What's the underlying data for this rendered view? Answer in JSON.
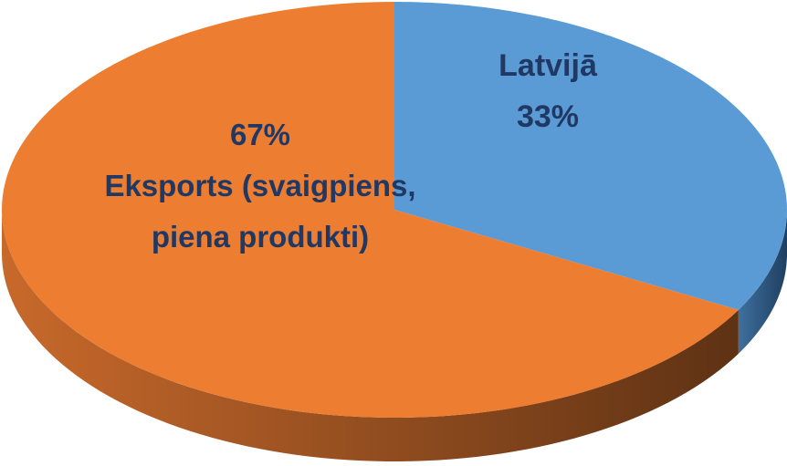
{
  "chart_data": {
    "type": "pie",
    "categories": [
      "Latvijā",
      "Eksports (svaigpiens, piena produkti)"
    ],
    "values": [
      33,
      67
    ],
    "value_labels": [
      "33%",
      "67%"
    ],
    "colors": [
      "#5b9bd5",
      "#ed7d31"
    ]
  }
}
